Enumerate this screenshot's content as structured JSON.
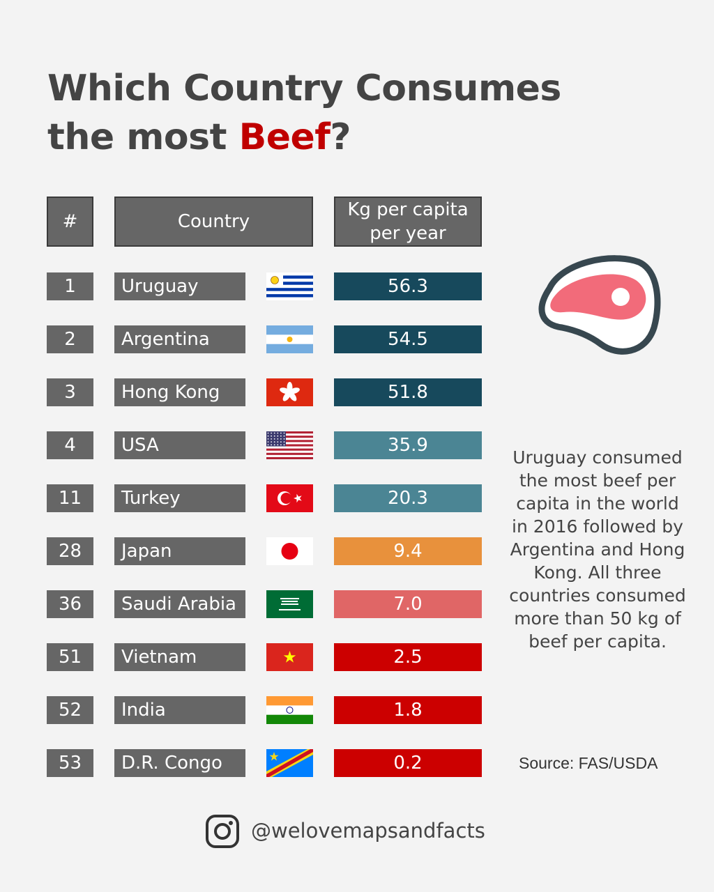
{
  "title": {
    "line1": "Which Country Consumes",
    "line2_pre": "the most ",
    "line2_highlight": "Beef",
    "line2_post": "?"
  },
  "headers": {
    "rank": "#",
    "country": "Country",
    "value_line1": "Kg per capita",
    "value_line2": "per year"
  },
  "chart_data": {
    "type": "table",
    "columns": [
      "#",
      "Country",
      "Kg per capita per year"
    ],
    "rows": [
      {
        "rank": "1",
        "country": "Uruguay",
        "value": "56.3",
        "flag": "uruguay-flag",
        "color": "#17495c"
      },
      {
        "rank": "2",
        "country": "Argentina",
        "value": "54.5",
        "flag": "argentina-flag",
        "color": "#17495c"
      },
      {
        "rank": "3",
        "country": "Hong Kong",
        "value": "51.8",
        "flag": "hong-kong-flag",
        "color": "#17495c"
      },
      {
        "rank": "4",
        "country": "USA",
        "value": "35.9",
        "flag": "usa-flag",
        "color": "#4b8594"
      },
      {
        "rank": "11",
        "country": "Turkey",
        "value": "20.3",
        "flag": "turkey-flag",
        "color": "#4b8594"
      },
      {
        "rank": "28",
        "country": "Japan",
        "value": "9.4",
        "flag": "japan-flag",
        "color": "#e8913c"
      },
      {
        "rank": "36",
        "country": "Saudi Arabia",
        "value": "7.0",
        "flag": "saudi-arabia-flag",
        "color": "#e06666"
      },
      {
        "rank": "51",
        "country": "Vietnam",
        "value": "2.5",
        "flag": "vietnam-flag",
        "color": "#cc0000"
      },
      {
        "rank": "52",
        "country": "India",
        "value": "1.8",
        "flag": "india-flag",
        "color": "#cc0000"
      },
      {
        "rank": "53",
        "country": "D.R. Congo",
        "value": "0.2",
        "flag": "dr-congo-flag",
        "color": "#cc0000"
      }
    ]
  },
  "note": "Uruguay consumed the most beef per capita in the world in 2016 followed by Argentina and Hong Kong. All three countries consumed more than 50 kg of beef per capita.",
  "source": "Source: FAS/USDA",
  "footer": {
    "icon": "instagram-icon",
    "handle": "@welovemapsandfacts"
  },
  "icons": {
    "meat": "steak-icon"
  }
}
